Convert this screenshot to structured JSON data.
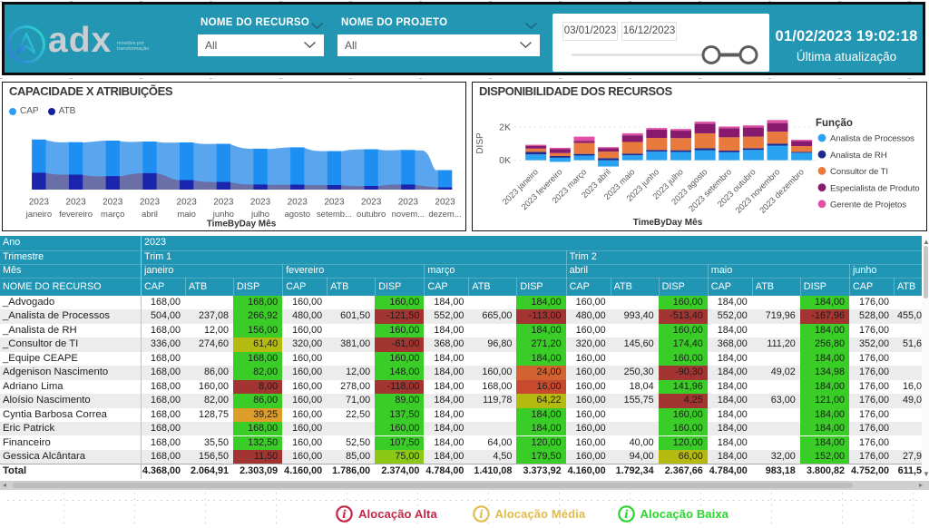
{
  "colors": {
    "teal": "#2296b2",
    "table_header": "#2096b4",
    "panel_border": "#141414",
    "cap_bar": "#1e8ff2",
    "cap_area": "#59a6ef",
    "atb_bar": "#1a24ac",
    "atb_area": "#6a6fa8",
    "row_stripe": "#ececec",
    "disp_palette": {
      "green": "#3bcd27",
      "lightgreen": "#8cc916",
      "olive": "#b5ba10",
      "amber": "#dd9d2a",
      "orangered": "#d2622f",
      "rust": "#c74a2e",
      "red": "#a23431"
    }
  },
  "header": {
    "brand": "adx",
    "tagline_line1": "movidos por",
    "tagline_line2": "transformação",
    "filters": [
      {
        "label": "NOME DO RECURSO",
        "value": "All"
      },
      {
        "label": "NOME DO PROJETO",
        "value": "All"
      }
    ],
    "date_start": "03/01/2023",
    "date_end": "16/12/2023",
    "updated_datetime": "01/02/2023 19:02:18",
    "updated_caption": "Última atualização"
  },
  "chart_data": [
    {
      "type": "area",
      "title": "CAPACIDADE X ATRIBUIÇÕES",
      "xlabel": "TimeByDay Mês",
      "x_tick_year": "2023",
      "categories": [
        "janeiro",
        "fevereiro",
        "março",
        "abril",
        "maio",
        "junho",
        "julho",
        "agosto",
        "setemb...",
        "outubro",
        "novem...",
        "dezem..."
      ],
      "legend": [
        {
          "name": "CAP",
          "color": "#2b9ff8"
        },
        {
          "name": "ATB",
          "color": "#1421a0"
        }
      ],
      "series": [
        {
          "name": "CAP",
          "values": [
            4368,
            4139,
            4273,
            4194,
            4115,
            3996,
            3569,
            3687,
            3363,
            3521,
            3458,
            1701
          ]
        },
        {
          "name": "ATB",
          "values": [
            1472,
            1306,
            1171,
            1432,
            831,
            665,
            443,
            435,
            396,
            317,
            443,
            198
          ]
        }
      ],
      "ylim": [
        0,
        5000
      ],
      "grid": false,
      "legend_position": "top-left"
    },
    {
      "type": "stacked-bar",
      "title": "DISPONIBILIDADE DOS RECURSOS",
      "xlabel": "TimeByDay Mês",
      "ylabel": "DISP",
      "categories": [
        "2023 janeiro",
        "2023 fevereiro",
        "2023 março",
        "2023 abril",
        "2023 maio",
        "2023 junho",
        "2023 julho",
        "2023 agosto",
        "2023 setembro",
        "2023 outubro",
        "2023 novembro",
        "2023 dezembro"
      ],
      "yticks": [
        "0K",
        "2K"
      ],
      "ylim_k": [
        -0.45,
        2.55
      ],
      "legend_title": "Função",
      "legend_position": "right",
      "grid": "y-dotted",
      "series": [
        {
          "name": "Analista de Processos",
          "color": "#29a2f2",
          "values_k": [
            0.35,
            0.25,
            0.28,
            0.38,
            0.3,
            0.52,
            0.5,
            0.6,
            0.48,
            0.62,
            0.88,
            0.45
          ]
        },
        {
          "name": "Analista de RH",
          "color": "#1c2b8d",
          "values_k": [
            0.15,
            0.1,
            0.1,
            0.12,
            0.1,
            0.1,
            0.1,
            0.12,
            0.1,
            0.1,
            0.12,
            0.05
          ]
        },
        {
          "name": "Consultor de TI",
          "color": "#e87a3d",
          "values_k": [
            0.2,
            0.18,
            0.66,
            0.4,
            0.7,
            0.72,
            0.73,
            0.9,
            0.8,
            0.7,
            0.72,
            0.35
          ]
        },
        {
          "name": "Especialista de Produto",
          "color": "#871a6d",
          "values_k": [
            0.17,
            0.25,
            0.13,
            0.2,
            0.4,
            0.5,
            0.45,
            0.58,
            0.55,
            0.55,
            0.52,
            0.3
          ]
        },
        {
          "name": "Gerente de Projetos",
          "color": "#e050a5",
          "values_k": [
            0.06,
            0.07,
            0.25,
            0.07,
            0.12,
            0.1,
            0.1,
            0.12,
            0.1,
            0.13,
            0.18,
            0.08
          ]
        }
      ],
      "stack_base_k": [
        0,
        -0.1,
        0,
        -0.38,
        0,
        0,
        0,
        0,
        0,
        0,
        0,
        0
      ]
    }
  ],
  "table": {
    "ano_label": "Ano",
    "ano_value": "2023",
    "trimestre_label": "Trimestre",
    "trim1": "Trim 1",
    "trim2": "Trim 2",
    "mes_label": "Mês",
    "name_header": "NOME DO RECURSO",
    "sub_cols": [
      "CAP",
      "ATB",
      "DISP"
    ],
    "months": [
      "janeiro",
      "fevereiro",
      "março",
      "abril",
      "maio",
      "junho"
    ],
    "rows": [
      {
        "name": "_Advogado",
        "m": [
          [
            "168,00",
            "",
            "168,00",
            "green"
          ],
          [
            "160,00",
            "",
            "160,00",
            "green"
          ],
          [
            "184,00",
            "",
            "184,00",
            "green"
          ],
          [
            "160,00",
            "",
            "160,00",
            "green"
          ],
          [
            "184,00",
            "",
            "184,00",
            "green"
          ],
          [
            "176,00",
            ""
          ]
        ]
      },
      {
        "name": "_Analista de Processos",
        "m": [
          [
            "504,00",
            "237,08",
            "266,92",
            "green"
          ],
          [
            "480,00",
            "601,50",
            "-121,50",
            "red"
          ],
          [
            "552,00",
            "665,00",
            "-113,00",
            "red"
          ],
          [
            "480,00",
            "993,40",
            "-513,40",
            "red"
          ],
          [
            "552,00",
            "719,96",
            "-167,96",
            "red"
          ],
          [
            "528,00",
            "455,0"
          ]
        ]
      },
      {
        "name": "_Analista de RH",
        "m": [
          [
            "168,00",
            "12,00",
            "156,00",
            "green"
          ],
          [
            "160,00",
            "",
            "160,00",
            "green"
          ],
          [
            "184,00",
            "",
            "184,00",
            "green"
          ],
          [
            "160,00",
            "",
            "160,00",
            "green"
          ],
          [
            "184,00",
            "",
            "184,00",
            "green"
          ],
          [
            "176,00",
            ""
          ]
        ]
      },
      {
        "name": "_Consultor de TI",
        "m": [
          [
            "336,00",
            "274,60",
            "61,40",
            "olive"
          ],
          [
            "320,00",
            "381,00",
            "-61,00",
            "red"
          ],
          [
            "368,00",
            "96,80",
            "271,20",
            "green"
          ],
          [
            "320,00",
            "145,60",
            "174,40",
            "green"
          ],
          [
            "368,00",
            "111,20",
            "256,80",
            "green"
          ],
          [
            "352,00",
            "51,6"
          ]
        ]
      },
      {
        "name": "_Equipe CEAPE",
        "m": [
          [
            "168,00",
            "",
            "168,00",
            "green"
          ],
          [
            "160,00",
            "",
            "160,00",
            "green"
          ],
          [
            "184,00",
            "",
            "184,00",
            "green"
          ],
          [
            "160,00",
            "",
            "160,00",
            "green"
          ],
          [
            "184,00",
            "",
            "184,00",
            "green"
          ],
          [
            "176,00",
            ""
          ]
        ]
      },
      {
        "name": "Adgenison Nascimento",
        "m": [
          [
            "168,00",
            "86,00",
            "82,00",
            "green"
          ],
          [
            "160,00",
            "12,00",
            "148,00",
            "green"
          ],
          [
            "184,00",
            "160,00",
            "24,00",
            "orangered"
          ],
          [
            "160,00",
            "250,30",
            "-90,30",
            "red"
          ],
          [
            "184,00",
            "49,02",
            "134,98",
            "green"
          ],
          [
            "176,00",
            ""
          ]
        ]
      },
      {
        "name": "Adriano Lima",
        "m": [
          [
            "168,00",
            "160,00",
            "8,00",
            "red"
          ],
          [
            "160,00",
            "278,00",
            "-118,00",
            "red"
          ],
          [
            "184,00",
            "168,00",
            "16,00",
            "rust"
          ],
          [
            "160,00",
            "18,04",
            "141,96",
            "green"
          ],
          [
            "184,00",
            "",
            "184,00",
            "green"
          ],
          [
            "176,00",
            "16,0"
          ]
        ]
      },
      {
        "name": "Aloísio Nascimento",
        "m": [
          [
            "168,00",
            "82,00",
            "86,00",
            "green"
          ],
          [
            "160,00",
            "71,00",
            "89,00",
            "green"
          ],
          [
            "184,00",
            "119,78",
            "64,22",
            "olive"
          ],
          [
            "160,00",
            "155,75",
            "4,25",
            "red"
          ],
          [
            "184,00",
            "63,00",
            "121,00",
            "green"
          ],
          [
            "176,00",
            "49,0"
          ]
        ]
      },
      {
        "name": "Cyntia Barbosa Correa",
        "m": [
          [
            "168,00",
            "128,75",
            "39,25",
            "amber"
          ],
          [
            "160,00",
            "22,50",
            "137,50",
            "green"
          ],
          [
            "184,00",
            "",
            "184,00",
            "green"
          ],
          [
            "160,00",
            "",
            "160,00",
            "green"
          ],
          [
            "184,00",
            "",
            "184,00",
            "green"
          ],
          [
            "176,00",
            ""
          ]
        ]
      },
      {
        "name": "Eric Patrick",
        "m": [
          [
            "168,00",
            "",
            "168,00",
            "green"
          ],
          [
            "160,00",
            "",
            "160,00",
            "green"
          ],
          [
            "184,00",
            "",
            "184,00",
            "green"
          ],
          [
            "160,00",
            "",
            "160,00",
            "green"
          ],
          [
            "184,00",
            "",
            "184,00",
            "green"
          ],
          [
            "176,00",
            ""
          ]
        ]
      },
      {
        "name": "Financeiro",
        "m": [
          [
            "168,00",
            "35,50",
            "132,50",
            "green"
          ],
          [
            "160,00",
            "52,50",
            "107,50",
            "green"
          ],
          [
            "184,00",
            "64,00",
            "120,00",
            "green"
          ],
          [
            "160,00",
            "40,00",
            "120,00",
            "green"
          ],
          [
            "184,00",
            "",
            "184,00",
            "green"
          ],
          [
            "176,00",
            ""
          ]
        ]
      },
      {
        "name": "Gessica Alcântara",
        "m": [
          [
            "168,00",
            "156,50",
            "11,50",
            "red"
          ],
          [
            "160,00",
            "85,00",
            "75,00",
            "lightgreen"
          ],
          [
            "184,00",
            "4,50",
            "179,50",
            "green"
          ],
          [
            "160,00",
            "94,00",
            "66,00",
            "olive"
          ],
          [
            "184,00",
            "32,00",
            "152,00",
            "green"
          ],
          [
            "176,00",
            "27,9"
          ]
        ]
      }
    ],
    "total": {
      "name": "Total",
      "m": [
        [
          "4.368,00",
          "2.064,91",
          "2.303,09"
        ],
        [
          "4.160,00",
          "1.786,00",
          "2.374,00"
        ],
        [
          "4.784,00",
          "1.410,08",
          "3.373,92"
        ],
        [
          "4.160,00",
          "1.792,34",
          "2.367,66"
        ],
        [
          "4.784,00",
          "983,18",
          "3.800,82"
        ],
        [
          "4.752,00",
          "611,5"
        ]
      ]
    }
  },
  "footer": {
    "items": [
      {
        "label": "Alocação Alta",
        "color": "#c32747"
      },
      {
        "label": "Alocação Média",
        "color": "#e2bc4a"
      },
      {
        "label": "Alocação Baixa",
        "color": "#2ad62e"
      }
    ]
  }
}
